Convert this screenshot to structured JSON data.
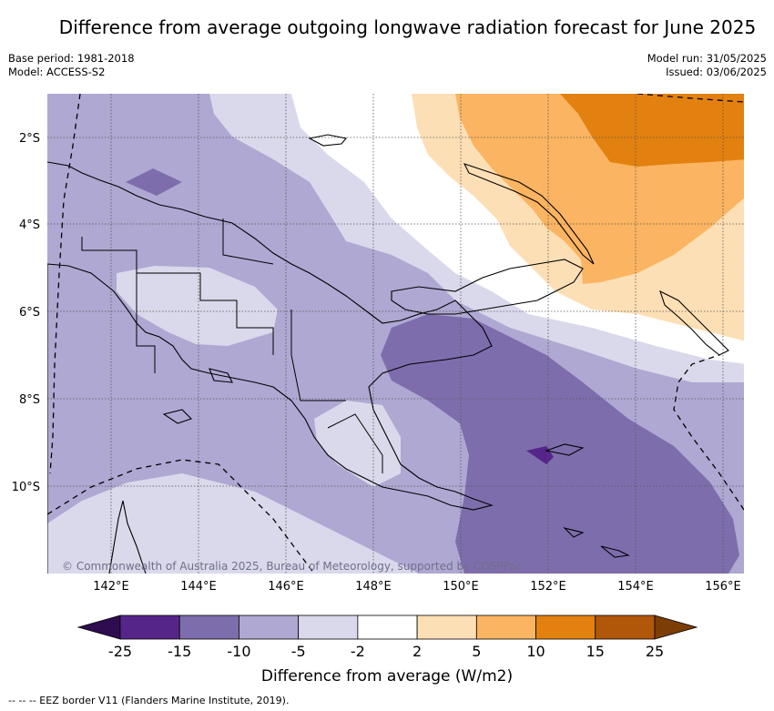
{
  "title": "Difference from average outgoing longwave radiation forecast for June 2025",
  "meta_left": [
    "Base period: 1981-2018",
    "Model: ACCESS-S2"
  ],
  "meta_right": [
    "Model run: 31/05/2025",
    "Issued: 03/06/2025"
  ],
  "copyright": "© Commonwealth of Australia 2025, Bureau of Meteorology, supported by COSPPac",
  "lat_labels": [
    "2°S",
    "4°S",
    "6°S",
    "8°S",
    "10°S"
  ],
  "lon_labels": [
    "142°E",
    "144°E",
    "146°E",
    "148°E",
    "150°E",
    "152°E",
    "154°E",
    "156°E"
  ],
  "colorbar": {
    "ticks": [
      "-25",
      "-15",
      "-10",
      "-5",
      "-2",
      "2",
      "5",
      "10",
      "15",
      "25"
    ],
    "colors": [
      "#55258a",
      "#7e6dac",
      "#afa8d2",
      "#d9d9eb",
      "#ffffff",
      "#fddfb5",
      "#fbb461",
      "#e2810f",
      "#b15709"
    ],
    "under_color": "#2f0c4f",
    "over_color": "#7c3d06",
    "label": "Difference from average (W/m2)"
  },
  "footnote": "-- -- -- EEZ border V11 (Flanders Marine Institute, 2019)."
}
